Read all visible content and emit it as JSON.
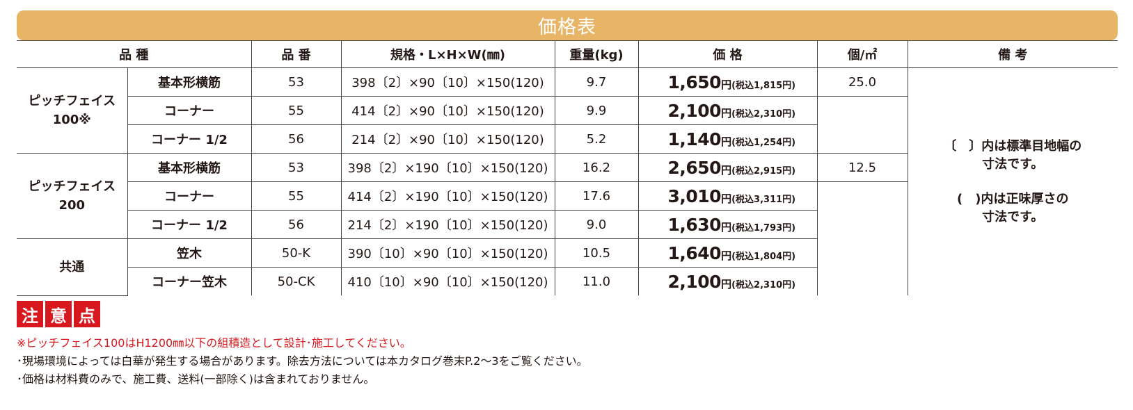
{
  "title": "価格表",
  "headers": [
    "品 種",
    "品 番",
    "規格・L×H×W(㎜)",
    "重量(kg)",
    "価 格",
    "個/㎡",
    "備 考"
  ],
  "groups": [
    {
      "name": "ピッチフェイス\n100※",
      "per_sqm": "25.0"
    },
    {
      "name": "ピッチフェイス\n200",
      "per_sqm": "12.5"
    },
    {
      "name": "共通"
    }
  ],
  "rows": [
    {
      "name": "基本形横筋",
      "code": "53",
      "size": "398〔2〕×90〔10〕×150(120)",
      "weight": "9.7",
      "price": "1,650",
      "tax": "(税込1,815円)"
    },
    {
      "name": "コーナー",
      "code": "55",
      "size": "414〔2〕×90〔10〕×150(120)",
      "weight": "9.9",
      "price": "2,100",
      "tax": "(税込2,310円)"
    },
    {
      "name": "コーナー 1/2",
      "code": "56",
      "size": "214〔2〕×90〔10〕×150(120)",
      "weight": "5.2",
      "price": "1,140",
      "tax": "(税込1,254円)"
    },
    {
      "name": "基本形横筋",
      "code": "53",
      "size": "398〔2〕×190〔10〕×150(120)",
      "weight": "16.2",
      "price": "2,650",
      "tax": "(税込2,915円)"
    },
    {
      "name": "コーナー",
      "code": "55",
      "size": "414〔2〕×190〔10〕×150(120)",
      "weight": "17.6",
      "price": "3,010",
      "tax": "(税込3,311円)"
    },
    {
      "name": "コーナー 1/2",
      "code": "56",
      "size": "214〔2〕×190〔10〕×150(120)",
      "weight": "9.0",
      "price": "1,630",
      "tax": "(税込1,793円)"
    },
    {
      "name": "笠木",
      "code": "50-K",
      "size": "390〔10〕×90〔10〕×150(120)",
      "weight": "10.5",
      "price": "1,640",
      "tax": "(税込1,804円)"
    },
    {
      "name": "コーナー笠木",
      "code": "50-CK",
      "size": "410〔10〕×90〔10〕×150(120)",
      "weight": "11.0",
      "price": "2,100",
      "tax": "(税込2,310円)"
    }
  ],
  "price_unit": "円",
  "remarks": [
    "〔　〕内は標準目地幅の\n寸法です。",
    "(　)内は正味厚さの\n寸法です。"
  ],
  "caution": [
    "注",
    "意",
    "点"
  ],
  "notes": [
    "※ピッチフェイス100はH1200㎜以下の組積造として設計･施工してください。",
    "･現場環境によっては白華が発生する場合があります。除去方法については本カタログ巻末P.2〜3をご覧ください。",
    "･価格は材料費のみで、施工費、送料(一部除く)は含まれておりません。"
  ],
  "colors": {
    "title_bar": "#e8b465",
    "caution_red": "#d7181f",
    "text": "#231815"
  }
}
